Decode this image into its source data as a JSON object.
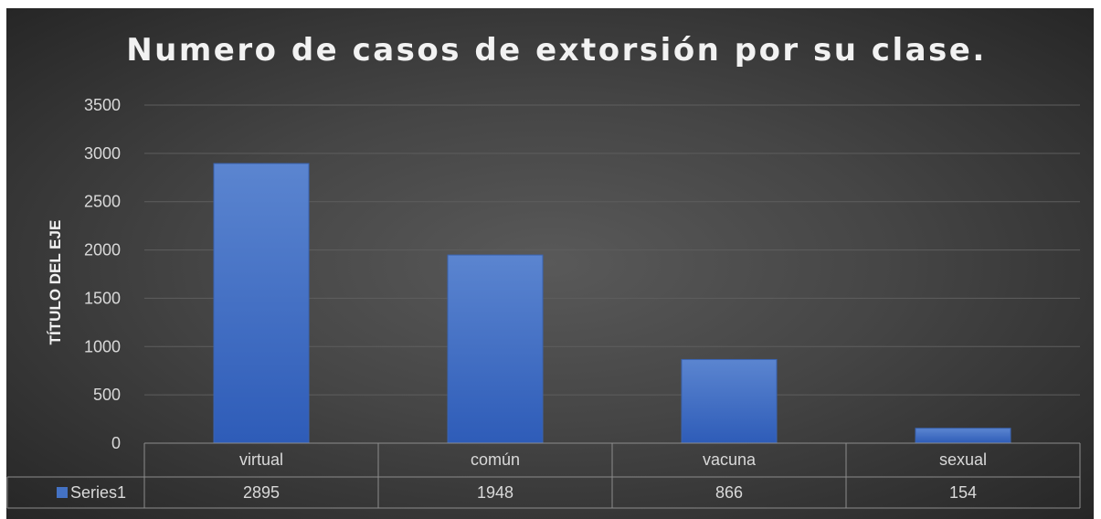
{
  "chart_data": {
    "type": "bar",
    "title": "Numero de casos de extorsión por su clase.",
    "xlabel": "",
    "ylabel": "TÍTULO DEL EJE",
    "categories": [
      "virtual",
      "común",
      "vacuna",
      "sexual"
    ],
    "series": [
      {
        "name": "Series1",
        "values": [
          2895,
          1948,
          866,
          154
        ],
        "color": "#4472C4"
      }
    ],
    "ylim": [
      0,
      3500
    ],
    "yticks": [
      0,
      500,
      1000,
      1500,
      2000,
      2500,
      3000,
      3500
    ],
    "grid": true,
    "legend": "data table",
    "data_table": true,
    "colors": {
      "background_center": "#595959",
      "background_edge": "#262626",
      "bar": "#4472C4",
      "text": "#d9d9d9"
    }
  }
}
